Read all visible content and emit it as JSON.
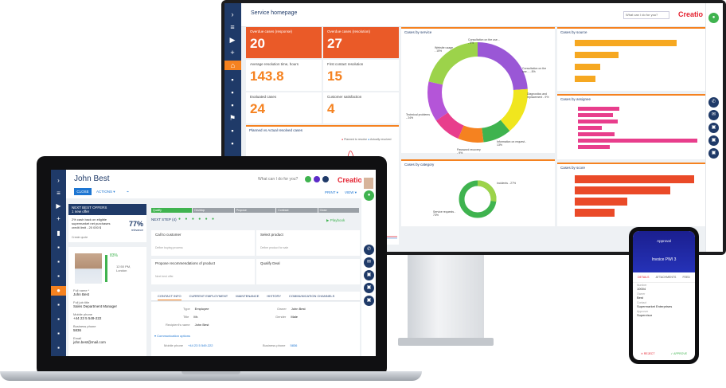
{
  "monitor": {
    "title": "Service homepage",
    "search_placeholder": "What can I do for you?",
    "logo": "Creatio",
    "tiles": [
      {
        "label": "Overdue cases (response)",
        "value": "20",
        "style": "orange"
      },
      {
        "label": "Overdue cases (resolution)",
        "value": "27",
        "style": "orange"
      },
      {
        "label": "Average resolution time, hours",
        "value": "143.8",
        "style": "white"
      },
      {
        "label": "First contact resolution",
        "value": "15",
        "style": "white"
      },
      {
        "label": "Evaluated cases",
        "value": "24",
        "style": "white"
      },
      {
        "label": "Customer satisfaction",
        "value": "4",
        "style": "white"
      }
    ],
    "planned_panel_title": "Planned vs Actual resolved cases",
    "planned_legend": [
      "Planned to resolve",
      "Actually resolved"
    ],
    "cases_by_service": {
      "title": "Cases by service",
      "labels": [
        "Website usage - 15%",
        "Consultation on the use... - 9%",
        "Consultation on the use... - 8%",
        "Diagnostics and replacement - 9%",
        "Information on request - 13%",
        "Password recovery - 9%",
        "Technical problems - 24%"
      ]
    },
    "cases_by_source": {
      "title": "Cases by source"
    },
    "cases_by_assignee": {
      "title": "Cases by assignee"
    },
    "cases_by_category": {
      "title": "Cases by category",
      "labels": [
        "Incidents - 27%",
        "Service requests - 73%"
      ]
    },
    "cases_by_score": {
      "title": "Cases by score"
    }
  },
  "laptop": {
    "contact_name": "John Best",
    "close_label": "CLOSE",
    "actions_label": "ACTIONS",
    "search_placeholder": "What can I do for you?",
    "logo": "Creatio",
    "print_label": "PRINT",
    "view_label": "VIEW",
    "nbo": {
      "title": "NEXT BEST OFFERS",
      "subtitle": "1 new offer",
      "text": "2% cash back on eligible supermarket net purchases credit limit - 20 000 $",
      "percent": "77%",
      "relevance": "relevance",
      "create": "Create quote"
    },
    "profile": {
      "completeness": "83%",
      "local_time": "12:50 PM, London",
      "full_name_label": "Full name *",
      "full_name": "John Best",
      "job_title_label": "Full job title",
      "job_title": "Sales Department Manager",
      "mobile_label": "Mobile phone",
      "mobile": "+44 23 5 549-222",
      "business_label": "Business phone",
      "business": "5836",
      "email_label": "Email",
      "email": "john.best@mail.com"
    },
    "stages": [
      "Qualify",
      "Develop",
      "Propose",
      "Contract",
      "Close"
    ],
    "next_steps": "NEXT STEP (4)",
    "playbook": "Playbook",
    "steps": [
      {
        "title": "Call to customer",
        "sub": "Define buying process"
      },
      {
        "title": "Select product",
        "sub": "Define product for sale"
      },
      {
        "title": "Propose recommendations of product",
        "sub": "Next best offer"
      },
      {
        "title": "Qualify Deal",
        "sub": ""
      }
    ],
    "tabs": [
      "CONTACT INFO",
      "CURRENT EMPLOYMENT",
      "MAINTENANCE",
      "HISTORY",
      "COMMUNICATION CHANNELS"
    ],
    "form": {
      "type_label": "Type",
      "type_value": "Employee",
      "title_label": "Title",
      "title_value": "Mr.",
      "recipient_label": "Recipient's name",
      "recipient_value": "John Best",
      "owner_label": "Owner",
      "owner_value": "John Best",
      "gender_label": "Gender",
      "gender_value": "Male",
      "comm_section": "Communication options",
      "mobile_phone_label": "Mobile phone",
      "mobile_phone_value": "+44 23 5 549-222",
      "business_phone_label": "Business phone",
      "business_phone_value": "5836"
    }
  },
  "phone": {
    "header": "Approval",
    "invoice": "Invoice PWI 3",
    "tabs": [
      "DETAILS",
      "ATTACHMENTS",
      "FEED"
    ],
    "fields": [
      {
        "label": "Number",
        "value": "10004"
      },
      {
        "label": "Owner",
        "value": "Best"
      },
      {
        "label": "Contact",
        "value": "Supermarket Enterprises"
      },
      {
        "label": "Approver",
        "value": "Supervisor"
      }
    ],
    "reject": "REJECT",
    "approve": "APPROVE"
  },
  "colors": {
    "navy": "#1f3a68",
    "orange": "#f58220",
    "brand_red": "#e4202e"
  }
}
